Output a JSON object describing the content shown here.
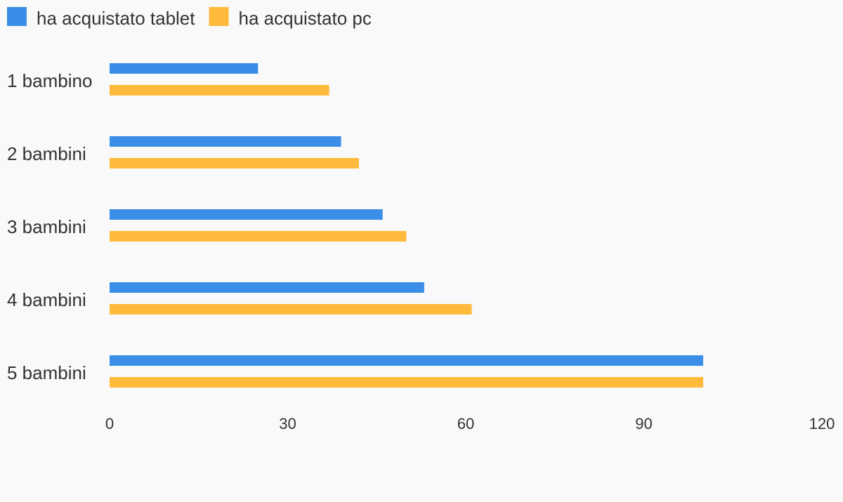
{
  "chart_data": {
    "type": "bar",
    "orientation": "horizontal",
    "categories": [
      "1 bambino",
      "2 bambini",
      "3 bambini",
      "4 bambini",
      "5 bambini"
    ],
    "series": [
      {
        "name": "ha acquistato tablet",
        "color": "#3a8ee8",
        "values": [
          25,
          39,
          46,
          53,
          100
        ]
      },
      {
        "name": "ha acquistato pc",
        "color": "#ffba3b",
        "values": [
          37,
          42,
          50,
          61,
          100
        ]
      }
    ],
    "xlim": [
      0,
      120
    ],
    "xticks": [
      0,
      30,
      60,
      90,
      120
    ],
    "grid": false,
    "legend_position": "top-left"
  }
}
